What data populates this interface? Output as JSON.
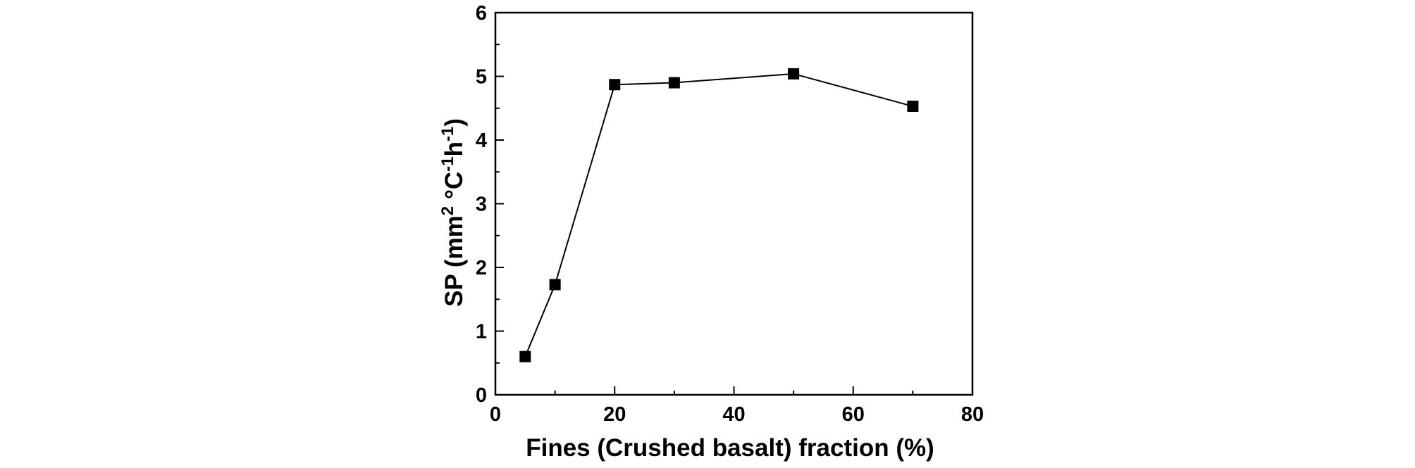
{
  "chart_data": {
    "type": "line",
    "title": "",
    "xlabel": "Fines (Crushed basalt) fraction (%)",
    "ylabel": {
      "base": "SP (mm",
      "sup1": "2",
      "mid1": " °C",
      "sup2": "-1",
      "mid2": "h",
      "sup3": "-1",
      "end": ")"
    },
    "xlim": [
      0,
      80
    ],
    "ylim": [
      0,
      6
    ],
    "xticks": [
      0,
      20,
      40,
      60,
      80
    ],
    "yticks": [
      0,
      1,
      2,
      3,
      4,
      5,
      6
    ],
    "grid": false,
    "legend": "none",
    "marker": "square",
    "color": "#000000",
    "series": [
      {
        "x": [
          5,
          10,
          20,
          30,
          50,
          70
        ],
        "values": [
          0.6,
          1.73,
          4.87,
          4.9,
          5.04,
          4.53
        ]
      }
    ]
  }
}
